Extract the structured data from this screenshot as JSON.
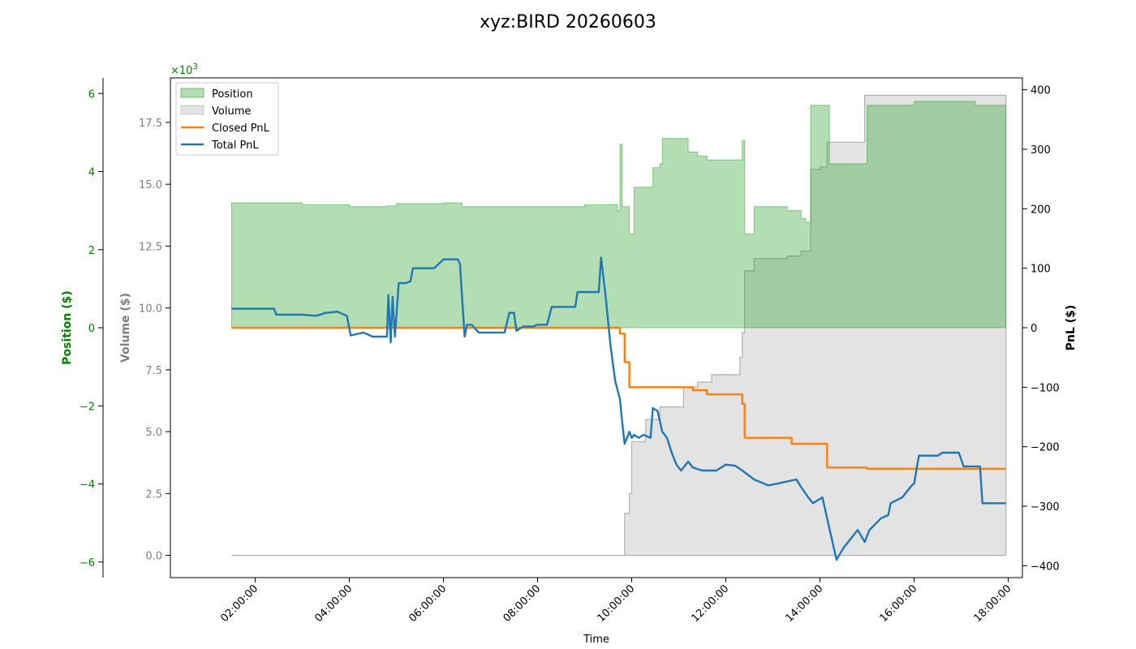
{
  "chart_data": {
    "type": "line",
    "title": "xyz:BIRD 20260603",
    "xlabel": "Time",
    "x_ticks": [
      "02:00:00",
      "04:00:00",
      "06:00:00",
      "08:00:00",
      "10:00:00",
      "12:00:00",
      "14:00:00",
      "16:00:00",
      "18:00:00"
    ],
    "y_left_outer": {
      "label": "Position ($)",
      "color": "#008000",
      "ylim": [
        -6.4,
        6.4
      ],
      "ticks": [
        -6,
        -4,
        -2,
        0,
        2,
        4,
        6
      ],
      "tick_labels": [
        "−6",
        "−4",
        "−2",
        "0",
        "2",
        "4",
        "6"
      ],
      "scale_label": "×10",
      "scale_exp": "3"
    },
    "y_left_inner": {
      "label": "Volume ($)",
      "color": "#808080",
      "ylim": [
        -0.9,
        19.3
      ],
      "ticks": [
        0,
        2.5,
        5,
        7.5,
        10,
        12.5,
        15,
        17.5
      ],
      "tick_labels": [
        "0.0",
        "2.5",
        "5.0",
        "7.5",
        "10.0",
        "12.5",
        "15.0",
        "17.5"
      ]
    },
    "y_right": {
      "label": "PnL ($)",
      "color": "#000000",
      "ylim": [
        -420,
        420
      ],
      "ticks": [
        -400,
        -300,
        -200,
        -100,
        0,
        100,
        200,
        300,
        400
      ],
      "tick_labels": [
        "−400",
        "−300",
        "−200",
        "−100",
        "0",
        "100",
        "200",
        "300",
        "400"
      ]
    },
    "legend": {
      "placement": "upper-left",
      "items": [
        {
          "label": "Position",
          "color": "#2ca02c",
          "kind": "area"
        },
        {
          "label": "Volume",
          "color": "#b0b0b0",
          "kind": "area"
        },
        {
          "label": "Closed PnL",
          "color": "#ff7f0e",
          "kind": "line"
        },
        {
          "label": "Total PnL",
          "color": "#1f77b4",
          "kind": "line"
        }
      ]
    },
    "series": [
      {
        "name": "Position",
        "axis": "y_left_outer",
        "unit": "thousand $",
        "points": [
          [
            1.5,
            3.2
          ],
          [
            2.4,
            3.2
          ],
          [
            3.0,
            3.15
          ],
          [
            4.0,
            3.1
          ],
          [
            4.8,
            3.12
          ],
          [
            5.0,
            3.18
          ],
          [
            6.0,
            3.2
          ],
          [
            6.4,
            3.1
          ],
          [
            7.0,
            3.1
          ],
          [
            8.0,
            3.1
          ],
          [
            9.0,
            3.15
          ],
          [
            9.5,
            3.15
          ],
          [
            9.7,
            3.0
          ],
          [
            9.75,
            4.7
          ],
          [
            9.8,
            3.1
          ],
          [
            9.95,
            2.4
          ],
          [
            10.05,
            3.6
          ],
          [
            10.4,
            3.6
          ],
          [
            10.45,
            4.1
          ],
          [
            10.6,
            4.2
          ],
          [
            10.65,
            4.85
          ],
          [
            11.2,
            4.5
          ],
          [
            11.4,
            4.4
          ],
          [
            11.6,
            4.3
          ],
          [
            12.3,
            4.3
          ],
          [
            12.35,
            4.8
          ],
          [
            12.4,
            2.4
          ],
          [
            12.5,
            2.4
          ],
          [
            12.6,
            3.1
          ],
          [
            13.3,
            3.0
          ],
          [
            13.6,
            2.8
          ],
          [
            13.7,
            2.7
          ],
          [
            13.8,
            5.7
          ],
          [
            14.1,
            5.7
          ],
          [
            14.2,
            4.2
          ],
          [
            14.9,
            4.2
          ],
          [
            15.0,
            5.7
          ],
          [
            15.5,
            5.7
          ],
          [
            16.0,
            5.8
          ],
          [
            17.0,
            5.8
          ],
          [
            17.3,
            5.7
          ],
          [
            17.95,
            5.7
          ]
        ]
      },
      {
        "name": "Volume",
        "axis": "y_left_inner",
        "unit": "thousand $",
        "points": [
          [
            1.5,
            0
          ],
          [
            9.75,
            0
          ],
          [
            9.85,
            1.7
          ],
          [
            9.95,
            2.5
          ],
          [
            10.0,
            4.6
          ],
          [
            10.3,
            5.5
          ],
          [
            10.5,
            5.5
          ],
          [
            10.6,
            6.0
          ],
          [
            11.1,
            6.8
          ],
          [
            11.4,
            7.0
          ],
          [
            11.7,
            7.3
          ],
          [
            12.2,
            7.3
          ],
          [
            12.3,
            8.0
          ],
          [
            12.35,
            9.0
          ],
          [
            12.4,
            11.5
          ],
          [
            12.6,
            12.0
          ],
          [
            13.3,
            12.1
          ],
          [
            13.6,
            12.3
          ],
          [
            13.8,
            15.6
          ],
          [
            14.0,
            15.7
          ],
          [
            14.15,
            16.7
          ],
          [
            14.9,
            16.7
          ],
          [
            14.95,
            18.6
          ],
          [
            17.95,
            18.6
          ]
        ]
      },
      {
        "name": "Closed PnL",
        "axis": "y_right",
        "unit": "$",
        "points": [
          [
            1.5,
            0
          ],
          [
            9.7,
            0
          ],
          [
            9.75,
            -10
          ],
          [
            9.85,
            -58
          ],
          [
            9.95,
            -100
          ],
          [
            11.2,
            -100
          ],
          [
            11.3,
            -105
          ],
          [
            11.6,
            -112
          ],
          [
            12.3,
            -112
          ],
          [
            12.35,
            -128
          ],
          [
            12.4,
            -185
          ],
          [
            13.3,
            -185
          ],
          [
            13.4,
            -195
          ],
          [
            14.1,
            -195
          ],
          [
            14.15,
            -235
          ],
          [
            14.9,
            -235
          ],
          [
            15.0,
            -237
          ],
          [
            17.95,
            -237
          ]
        ]
      },
      {
        "name": "Total PnL",
        "axis": "y_right",
        "unit": "$",
        "points": [
          [
            1.5,
            32
          ],
          [
            2.4,
            32
          ],
          [
            2.45,
            22
          ],
          [
            3.0,
            22
          ],
          [
            3.3,
            20
          ],
          [
            3.5,
            25
          ],
          [
            3.75,
            27
          ],
          [
            3.95,
            20
          ],
          [
            4.03,
            -13
          ],
          [
            4.3,
            -8
          ],
          [
            4.5,
            -15
          ],
          [
            4.8,
            -15
          ],
          [
            4.83,
            55
          ],
          [
            4.88,
            -25
          ],
          [
            4.92,
            52
          ],
          [
            4.97,
            -15
          ],
          [
            5.05,
            75
          ],
          [
            5.2,
            75
          ],
          [
            5.3,
            78
          ],
          [
            5.35,
            100
          ],
          [
            5.8,
            100
          ],
          [
            6.0,
            115
          ],
          [
            6.3,
            115
          ],
          [
            6.35,
            108
          ],
          [
            6.45,
            -15
          ],
          [
            6.5,
            5
          ],
          [
            6.6,
            5
          ],
          [
            6.75,
            -8
          ],
          [
            7.0,
            -8
          ],
          [
            7.3,
            -8
          ],
          [
            7.4,
            25
          ],
          [
            7.5,
            25
          ],
          [
            7.55,
            -5
          ],
          [
            7.7,
            2
          ],
          [
            7.9,
            2
          ],
          [
            8.0,
            5
          ],
          [
            8.2,
            5
          ],
          [
            8.3,
            35
          ],
          [
            8.8,
            35
          ],
          [
            8.85,
            60
          ],
          [
            9.3,
            60
          ],
          [
            9.35,
            118
          ],
          [
            9.45,
            50
          ],
          [
            9.55,
            -30
          ],
          [
            9.65,
            -90
          ],
          [
            9.75,
            -120
          ],
          [
            9.8,
            -160
          ],
          [
            9.85,
            -195
          ],
          [
            9.95,
            -175
          ],
          [
            10.0,
            -185
          ],
          [
            10.05,
            -180
          ],
          [
            10.15,
            -185
          ],
          [
            10.25,
            -180
          ],
          [
            10.4,
            -185
          ],
          [
            10.45,
            -135
          ],
          [
            10.55,
            -140
          ],
          [
            10.65,
            -175
          ],
          [
            10.75,
            -185
          ],
          [
            10.85,
            -210
          ],
          [
            10.95,
            -230
          ],
          [
            11.05,
            -240
          ],
          [
            11.2,
            -225
          ],
          [
            11.3,
            -235
          ],
          [
            11.5,
            -240
          ],
          [
            11.8,
            -240
          ],
          [
            12.0,
            -230
          ],
          [
            12.2,
            -232
          ],
          [
            12.35,
            -240
          ],
          [
            12.6,
            -255
          ],
          [
            12.9,
            -265
          ],
          [
            13.1,
            -262
          ],
          [
            13.5,
            -255
          ],
          [
            13.6,
            -268
          ],
          [
            13.75,
            -285
          ],
          [
            13.85,
            -295
          ],
          [
            14.05,
            -285
          ],
          [
            14.15,
            -320
          ],
          [
            14.25,
            -355
          ],
          [
            14.35,
            -390
          ],
          [
            14.5,
            -370
          ],
          [
            14.8,
            -340
          ],
          [
            14.95,
            -360
          ],
          [
            15.05,
            -340
          ],
          [
            15.3,
            -320
          ],
          [
            15.45,
            -315
          ],
          [
            15.5,
            -295
          ],
          [
            15.75,
            -285
          ],
          [
            15.95,
            -265
          ],
          [
            16.0,
            -262
          ],
          [
            16.1,
            -215
          ],
          [
            16.5,
            -215
          ],
          [
            16.6,
            -210
          ],
          [
            16.95,
            -210
          ],
          [
            17.05,
            -233
          ],
          [
            17.4,
            -233
          ],
          [
            17.45,
            -295
          ],
          [
            17.95,
            -295
          ]
        ]
      }
    ]
  }
}
